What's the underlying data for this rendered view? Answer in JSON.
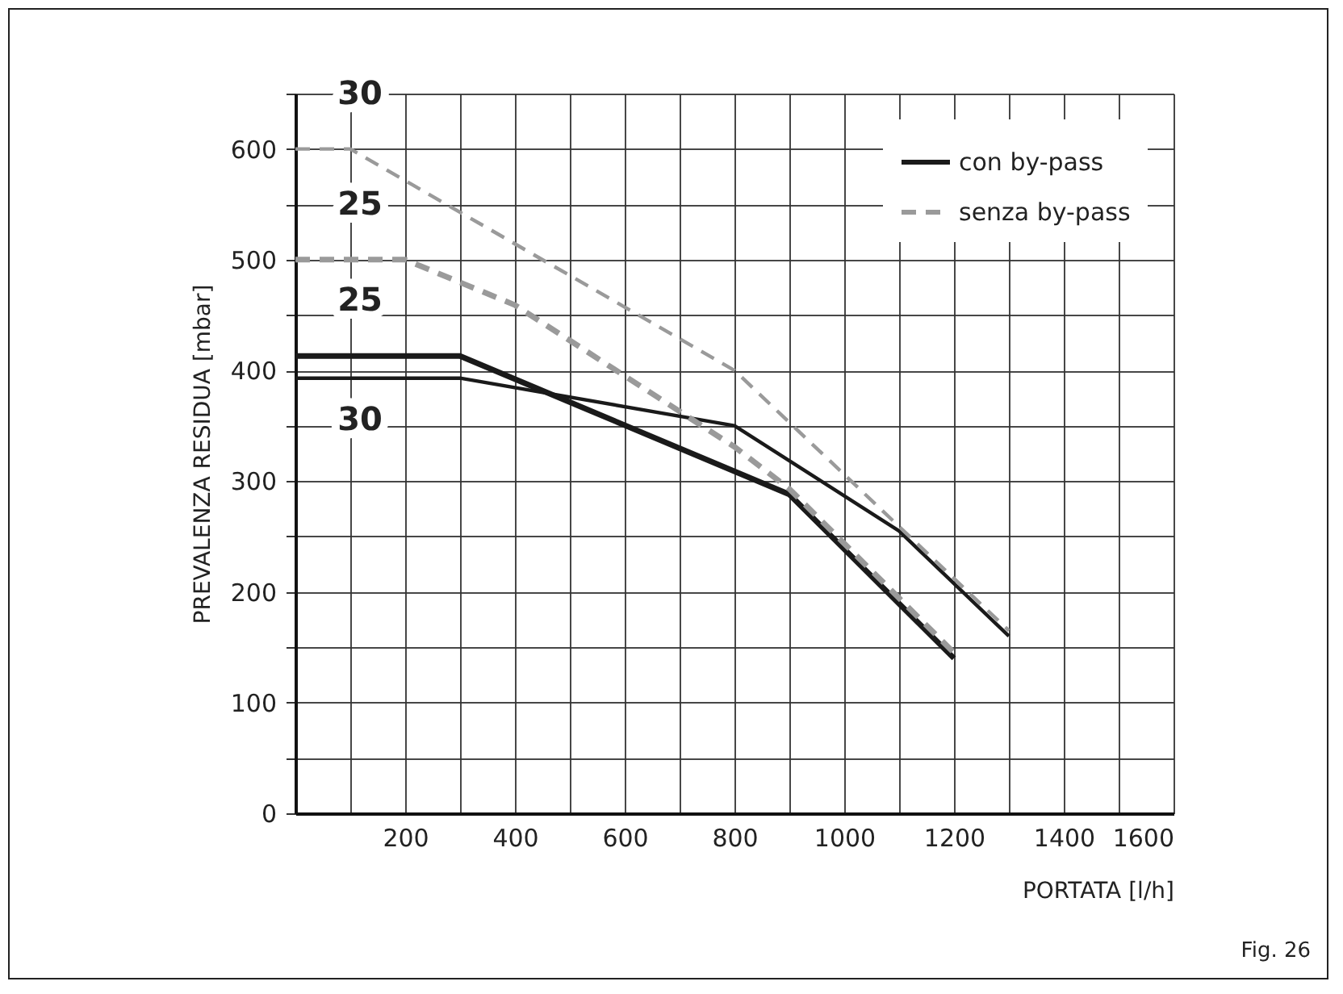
{
  "chart_data": {
    "type": "line",
    "xlabel": "PORTATA [l/h]",
    "ylabel": "PREVALENZA RESIDUA [mbar]",
    "xlim": [
      0,
      1600
    ],
    "ylim": [
      0,
      650
    ],
    "xticks": [
      {
        "value": 100,
        "label": null
      },
      200,
      {
        "value": 300,
        "label": null
      },
      400,
      {
        "value": 500,
        "label": null
      },
      600,
      {
        "value": 700,
        "label": null
      },
      800,
      {
        "value": 900,
        "label": null
      },
      1000,
      {
        "value": 1100,
        "label": null
      },
      1200,
      {
        "value": 1300,
        "label": null
      },
      1400,
      {
        "value": 1500,
        "label": null
      },
      1600
    ],
    "yticks": [
      0,
      {
        "value": 50,
        "label": null
      },
      100,
      {
        "value": 150,
        "label": null
      },
      200,
      {
        "value": 250,
        "label": null
      },
      300,
      {
        "value": 350,
        "label": null
      },
      400,
      {
        "value": 450,
        "label": null
      },
      500,
      {
        "value": 550,
        "label": null
      },
      600,
      {
        "value": 650,
        "label": null
      }
    ],
    "grid": true,
    "legend": "top right",
    "marker": "none",
    "series": [
      {
        "name": "con by-pass",
        "color": "#1a1a1a",
        "line_style": "solid",
        "x": [
          0,
          300,
          900,
          1200
        ],
        "values": [
          413,
          413,
          288,
          140
        ]
      },
      {
        "color": "#1a1a1a",
        "line_style": "solid",
        "x": [
          0,
          300,
          800,
          1100,
          1300
        ],
        "values": [
          393,
          393,
          350,
          255,
          160
        ]
      },
      {
        "name": "senza by-pass",
        "color": "#9a9a9a",
        "line_style": "dashed",
        "x": [
          0,
          100,
          800,
          1300
        ],
        "values": [
          600,
          600,
          400,
          165
        ]
      },
      {
        "color": "#9a9a9a",
        "line_style": "dashed",
        "x": [
          0,
          200,
          400,
          800,
          900,
          1200
        ],
        "values": [
          500,
          500,
          459,
          331,
          293,
          145
        ]
      }
    ],
    "annotations": [
      "30",
      "25",
      "25",
      "30",
      "Fig. 26"
    ]
  }
}
